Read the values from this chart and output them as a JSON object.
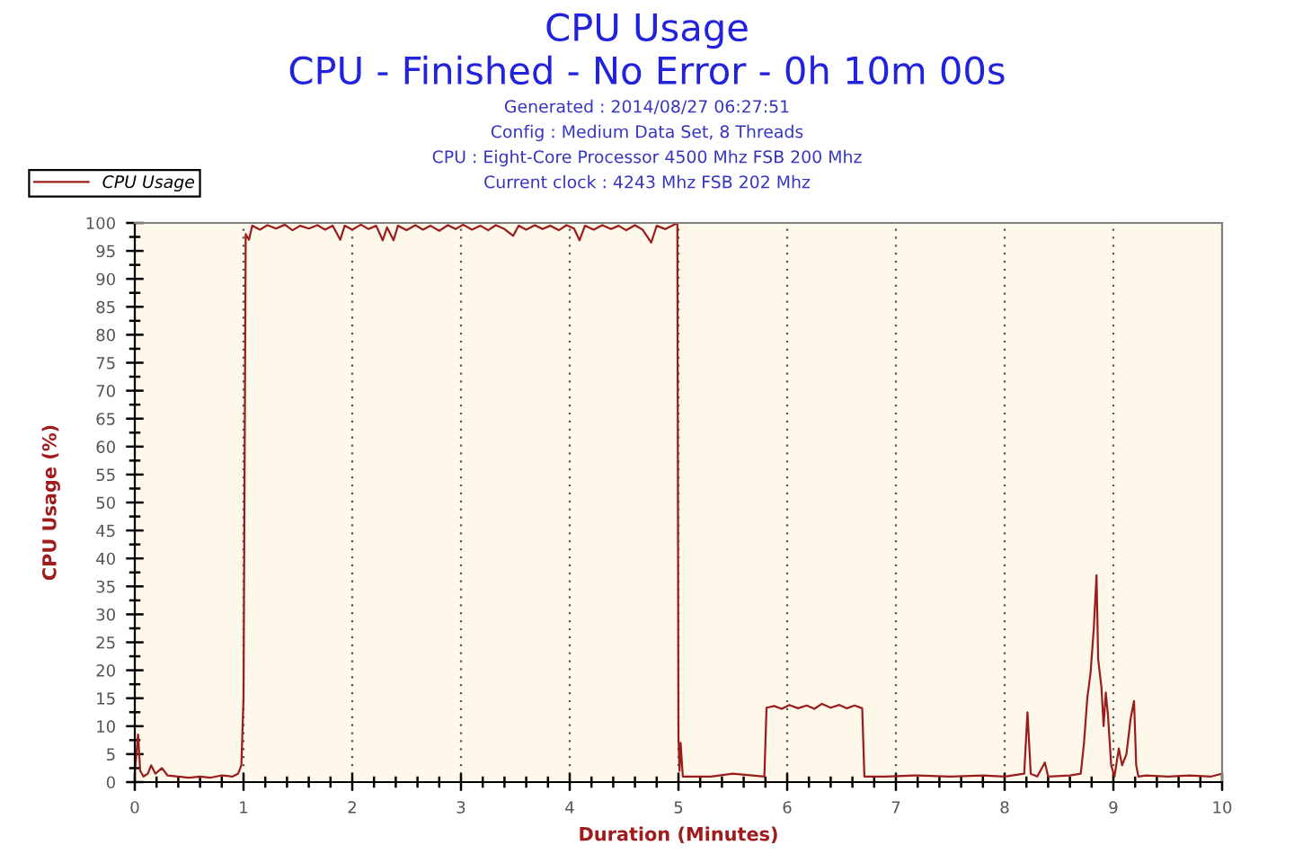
{
  "chart_data": {
    "type": "line",
    "title": "CPU Usage",
    "subtitle": "CPU - Finished - No Error - 0h 10m 00s",
    "annotations": [
      "Generated : 2014/08/27 06:27:51",
      "Config : Medium Data Set, 8 Threads",
      "CPU : Eight-Core Processor 4500 Mhz FSB 200 Mhz",
      "Current clock : 4243 Mhz FSB 202 Mhz"
    ],
    "xlabel": "Duration (Minutes)",
    "ylabel": "CPU Usage (%)",
    "x": [
      0,
      0.03,
      0.05,
      0.08,
      0.12,
      0.15,
      0.19,
      0.25,
      0.3,
      0.4,
      0.5,
      0.6,
      0.7,
      0.8,
      0.9,
      0.95,
      0.98,
      1.0,
      1.02,
      1.05,
      1.08,
      1.15,
      1.22,
      1.3,
      1.38,
      1.45,
      1.52,
      1.6,
      1.68,
      1.75,
      1.82,
      1.89,
      1.93,
      2.0,
      2.08,
      2.15,
      2.22,
      2.28,
      2.32,
      2.38,
      2.42,
      2.5,
      2.58,
      2.65,
      2.72,
      2.8,
      2.88,
      2.95,
      3.02,
      3.1,
      3.18,
      3.25,
      3.32,
      3.4,
      3.48,
      3.53,
      3.6,
      3.68,
      3.75,
      3.82,
      3.9,
      3.97,
      4.04,
      4.09,
      4.14,
      4.22,
      4.3,
      4.38,
      4.45,
      4.52,
      4.6,
      4.67,
      4.75,
      4.8,
      4.88,
      4.95,
      4.99,
      5.0,
      5.01,
      5.02,
      5.04,
      5.3,
      5.5,
      5.79,
      5.81,
      5.88,
      5.95,
      6.02,
      6.1,
      6.18,
      6.25,
      6.32,
      6.4,
      6.48,
      6.55,
      6.62,
      6.69,
      6.71,
      6.9,
      7.2,
      7.5,
      7.8,
      8.0,
      8.18,
      8.21,
      8.24,
      8.3,
      8.37,
      8.4,
      8.6,
      8.7,
      8.73,
      8.76,
      8.79,
      8.82,
      8.845,
      8.86,
      8.89,
      8.91,
      8.93,
      8.95,
      8.98,
      9.01,
      9.05,
      9.08,
      9.12,
      9.16,
      9.19,
      9.21,
      9.23,
      9.3,
      9.5,
      9.7,
      9.9,
      10.0
    ],
    "series": [
      {
        "name": "CPU Usage",
        "color": "#9b1c1c",
        "values": [
          1.5,
          8.5,
          2,
          1,
          1.5,
          3,
          1.5,
          2.5,
          1.2,
          1,
          0.8,
          1,
          0.8,
          1.2,
          1,
          1.5,
          3,
          15,
          98,
          97,
          99.5,
          98.8,
          99.6,
          99,
          99.7,
          98.7,
          99.5,
          99,
          99.6,
          98.8,
          99.5,
          97,
          99.5,
          98.8,
          99.7,
          98.9,
          99.5,
          96.9,
          99.2,
          96.9,
          99.5,
          98.7,
          99.6,
          98.8,
          99.5,
          98.6,
          99.6,
          98.9,
          99.7,
          98.8,
          99.5,
          98.7,
          99.6,
          98.9,
          97.7,
          99.5,
          98.8,
          99.6,
          98.9,
          99.5,
          98.7,
          99.6,
          99,
          96.9,
          99.5,
          98.8,
          99.6,
          98.9,
          99.5,
          98.7,
          99.6,
          98.8,
          96.5,
          99.5,
          98.9,
          99.6,
          100,
          8,
          2,
          7,
          1,
          1,
          1.5,
          1,
          13.3,
          13.6,
          13.1,
          13.8,
          13.2,
          13.7,
          13.1,
          14,
          13.3,
          13.8,
          13.2,
          13.7,
          13.2,
          1,
          1,
          1.2,
          1,
          1.2,
          1,
          1.5,
          12.5,
          1.5,
          1,
          3.5,
          1,
          1.2,
          1.5,
          7,
          15,
          19.5,
          27.5,
          37,
          22,
          17,
          10,
          16,
          12,
          3,
          1,
          6,
          3,
          5,
          11.5,
          14.5,
          3,
          1,
          1.2,
          1,
          1.2,
          1,
          1.5
        ]
      }
    ],
    "xlim": [
      0,
      10
    ],
    "xticks": [
      0,
      1,
      2,
      3,
      4,
      5,
      6,
      7,
      8,
      9,
      10
    ],
    "ylim": [
      0,
      100
    ],
    "yticks": [
      0,
      5,
      10,
      15,
      20,
      25,
      30,
      35,
      40,
      45,
      50,
      55,
      60,
      65,
      70,
      75,
      80,
      85,
      90,
      95,
      100
    ],
    "grid": "x",
    "legend": "top left"
  }
}
